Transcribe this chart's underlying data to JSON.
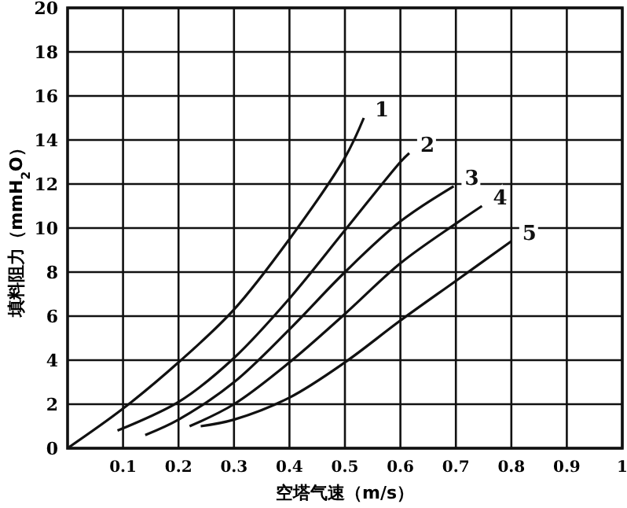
{
  "chart_data": {
    "type": "line",
    "xlabel": "空塔气速（m/s）",
    "ylabel": "填料阻力（mmH$_{2}$O）",
    "xlim": [
      0,
      1
    ],
    "ylim": [
      0,
      20
    ],
    "xticks": [
      0.1,
      0.2,
      0.3,
      0.4,
      0.5,
      0.6,
      0.7,
      0.8,
      0.9,
      1
    ],
    "yticks": [
      0,
      2,
      4,
      6,
      8,
      10,
      12,
      14,
      16,
      18,
      20
    ],
    "grid": true,
    "marker": "none",
    "line_style": "solid",
    "series": [
      {
        "name": "1",
        "color": "#111111",
        "x": [
          0,
          0.1,
          0.2,
          0.3,
          0.4,
          0.5,
          0.534
        ],
        "values": [
          0,
          1.8,
          3.9,
          6.3,
          9.5,
          13.2,
          15.0
        ]
      },
      {
        "name": "2",
        "color": "#111111",
        "x": [
          0.09,
          0.2,
          0.3,
          0.4,
          0.5,
          0.6,
          0.616
        ],
        "values": [
          0.8,
          2.1,
          4.1,
          6.8,
          9.9,
          13.0,
          13.4
        ]
      },
      {
        "name": "3",
        "color": "#111111",
        "x": [
          0.14,
          0.2,
          0.3,
          0.4,
          0.5,
          0.6,
          0.696
        ],
        "values": [
          0.6,
          1.3,
          3.0,
          5.4,
          8.0,
          10.3,
          11.9
        ]
      },
      {
        "name": "4",
        "color": "#111111",
        "x": [
          0.22,
          0.3,
          0.4,
          0.5,
          0.6,
          0.7,
          0.747
        ],
        "values": [
          1.0,
          2.0,
          3.9,
          6.1,
          8.4,
          10.2,
          11.0
        ]
      },
      {
        "name": "5",
        "color": "#111111",
        "x": [
          0.24,
          0.3,
          0.4,
          0.5,
          0.6,
          0.7,
          0.8
        ],
        "values": [
          1.0,
          1.3,
          2.3,
          3.9,
          5.8,
          7.6,
          9.4
        ]
      }
    ]
  }
}
